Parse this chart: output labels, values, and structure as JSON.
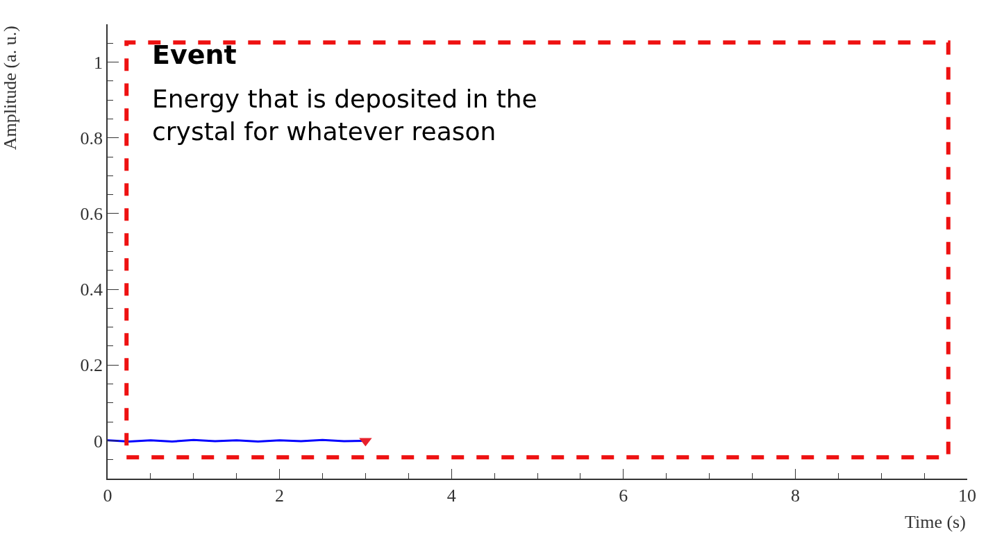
{
  "chart_data": {
    "type": "line",
    "xlabel": "Time (s)",
    "ylabel": "Amplitude (a. u.)",
    "xlim": [
      0,
      10
    ],
    "xticks": [
      0,
      2,
      4,
      6,
      8,
      10
    ],
    "ylim": [
      -0.1,
      1.1
    ],
    "yticks": [
      0,
      0.2,
      0.4,
      0.6,
      0.8,
      1
    ],
    "series": [
      {
        "color": "#0000ff",
        "x": [
          0,
          0.25,
          0.5,
          0.75,
          1,
          1.25,
          1.5,
          1.75,
          2,
          2.25,
          2.5,
          2.75,
          3
        ],
        "values": [
          0.001,
          -0.002,
          0.001,
          -0.002,
          0.002,
          -0.001,
          0.001,
          -0.002,
          0.001,
          -0.001,
          0.002,
          -0.001,
          0
        ],
        "marker": "none"
      },
      {
        "type": "scatter",
        "color": "#e8212b",
        "x": [
          3
        ],
        "values": [
          0
        ],
        "marker": "triangle-down"
      }
    ],
    "annotations": [
      "Event",
      "Energy that is deposited in the crystal for whatever reason"
    ]
  }
}
